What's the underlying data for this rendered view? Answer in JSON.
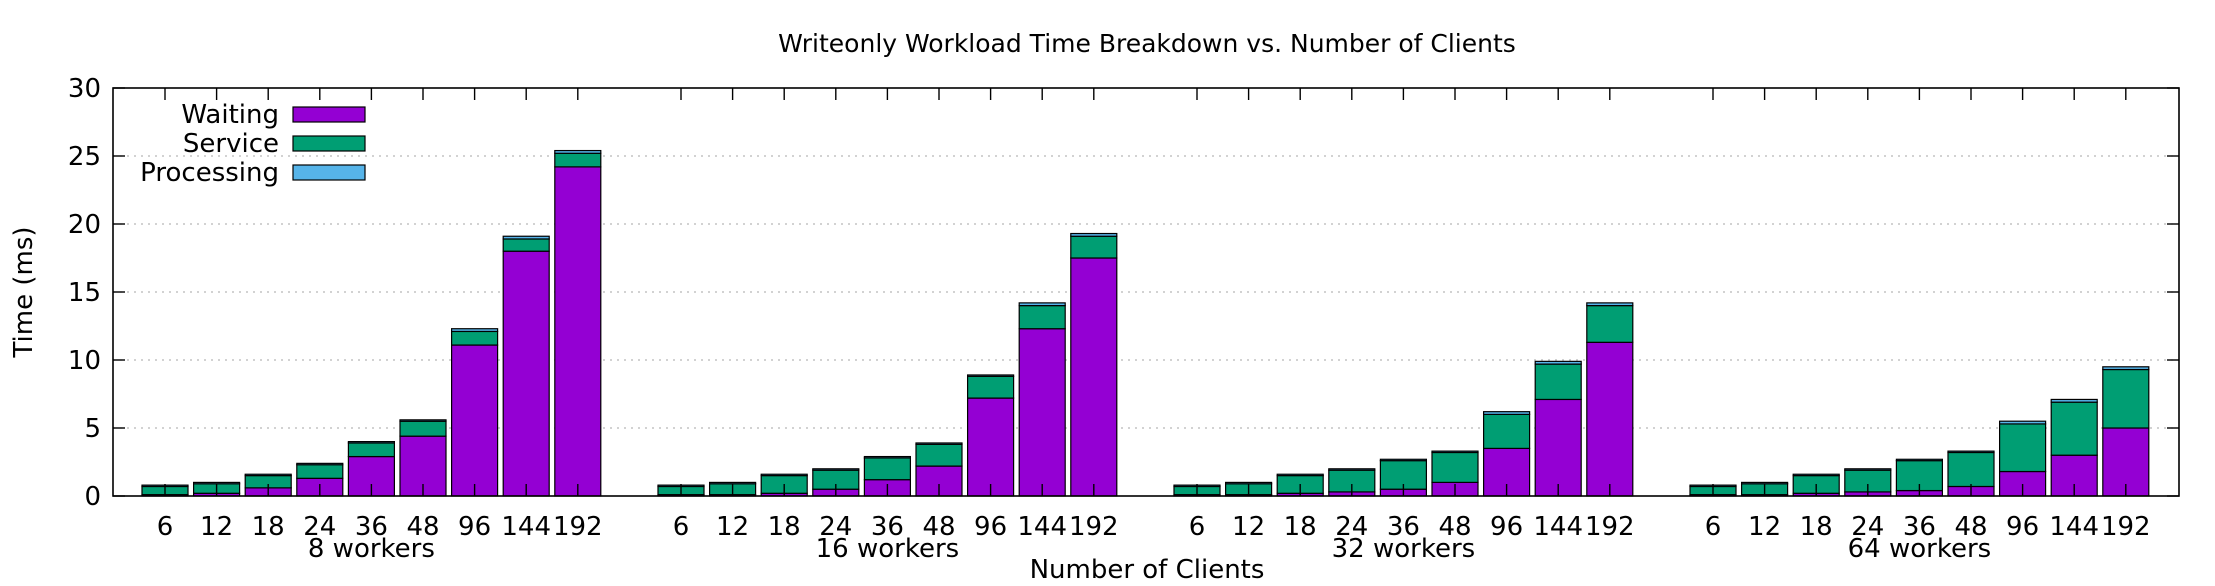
{
  "chart_data": {
    "type": "bar",
    "stacked": true,
    "title": "Writeonly Workload Time Breakdown vs. Number of Clients",
    "xlabel": "Number of Clients",
    "ylabel": "Time (ms)",
    "ylim": [
      0,
      30
    ],
    "yticks": [
      "0",
      "5",
      "10",
      "15",
      "20",
      "25",
      "30"
    ],
    "grid": "horizontal dotted",
    "legend_position": "top-left",
    "clients": [
      "6",
      "12",
      "18",
      "24",
      "36",
      "48",
      "96",
      "144",
      "192"
    ],
    "series_meta": [
      {
        "name": "Waiting",
        "color": "#9400d3"
      },
      {
        "name": "Service",
        "color": "#009e73"
      },
      {
        "name": "Processing",
        "color": "#56b4e9"
      }
    ],
    "groups": [
      {
        "label": "8 workers",
        "waiting": [
          0.1,
          0.2,
          0.6,
          1.3,
          2.9,
          4.4,
          11.1,
          18.0,
          24.2
        ],
        "service": [
          0.6,
          0.7,
          0.9,
          1.0,
          1.0,
          1.1,
          1.0,
          0.9,
          1.0
        ],
        "processing": [
          0.1,
          0.1,
          0.1,
          0.1,
          0.1,
          0.1,
          0.2,
          0.2,
          0.2
        ]
      },
      {
        "label": "16 workers",
        "waiting": [
          0.1,
          0.1,
          0.2,
          0.5,
          1.2,
          2.2,
          7.2,
          12.3,
          17.5
        ],
        "service": [
          0.6,
          0.8,
          1.3,
          1.4,
          1.6,
          1.6,
          1.6,
          1.7,
          1.6
        ],
        "processing": [
          0.1,
          0.1,
          0.1,
          0.1,
          0.1,
          0.1,
          0.1,
          0.2,
          0.2
        ]
      },
      {
        "label": "32 workers",
        "waiting": [
          0.1,
          0.1,
          0.2,
          0.3,
          0.5,
          1.0,
          3.5,
          7.1,
          11.3
        ],
        "service": [
          0.6,
          0.8,
          1.3,
          1.6,
          2.1,
          2.2,
          2.5,
          2.6,
          2.7
        ],
        "processing": [
          0.1,
          0.1,
          0.1,
          0.1,
          0.1,
          0.1,
          0.2,
          0.2,
          0.2
        ]
      },
      {
        "label": "64 workers",
        "waiting": [
          0.1,
          0.1,
          0.2,
          0.3,
          0.4,
          0.7,
          1.8,
          3.0,
          5.0
        ],
        "service": [
          0.6,
          0.8,
          1.3,
          1.6,
          2.2,
          2.5,
          3.5,
          3.9,
          4.3
        ],
        "processing": [
          0.1,
          0.1,
          0.1,
          0.1,
          0.1,
          0.1,
          0.2,
          0.2,
          0.2
        ]
      }
    ]
  }
}
